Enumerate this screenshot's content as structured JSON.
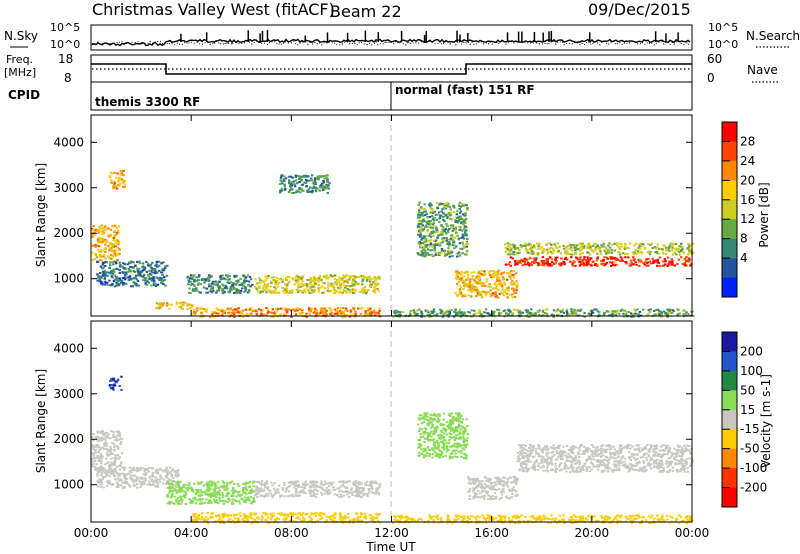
{
  "header": {
    "title": "Christmas Valley West (fitACF)",
    "beam": "Beam 22",
    "date": "09/Dec/2015"
  },
  "nsky_panel": {
    "left_label": "N.Sky",
    "left_ticks": [
      "10^5",
      "10^0"
    ],
    "right_label": "N.Search",
    "right_ticks": [
      "10^5",
      "10^0"
    ],
    "right_legend_style": "dotted"
  },
  "freq_panel": {
    "left_label_line1": "Freq.",
    "left_label_line2": "[MHz]",
    "left_ticks": [
      "18",
      "8"
    ],
    "right_label": "Nave",
    "right_ticks": [
      "60",
      "0"
    ],
    "right_legend_style": "dotted"
  },
  "cpid_panel": {
    "label": "CPID",
    "segments": [
      {
        "text": "themis 3300 RF",
        "start_hour": 0
      },
      {
        "text": "normal (fast) 151 RF",
        "start_hour": 12
      }
    ]
  },
  "power_colorbar": {
    "label": "Power [dB]",
    "ticks": [
      "28",
      "24",
      "20",
      "16",
      "12",
      "8",
      "4"
    ],
    "colors": [
      "#ff0000",
      "#ff4400",
      "#ff8800",
      "#ffcc00",
      "#cccc22",
      "#66aa44",
      "#338877",
      "#225599",
      "#0022ff"
    ]
  },
  "velocity_colorbar": {
    "label": "Velocity [m s-1]",
    "ticks": [
      "200",
      "100",
      "50",
      "15",
      "-15",
      "-50",
      "-100",
      "-200"
    ],
    "colors": [
      "#1a1aa0",
      "#2255cc",
      "#228844",
      "#88dd55",
      "#c8c8c0",
      "#ffcc00",
      "#ff8800",
      "#ff3300",
      "#ff0000"
    ]
  },
  "chart_data": [
    {
      "type": "heatmap",
      "variable": "Power",
      "ylabel": "Slant Range [km]",
      "xlabel": "",
      "x_range_hours": [
        0,
        24
      ],
      "ylim": [
        180,
        4600
      ],
      "y_ticks": [
        1000,
        2000,
        3000,
        4000
      ],
      "dashed_vertical_line_hour": 12,
      "echo_regions": [
        {
          "t0": 0.0,
          "t1": 1.1,
          "r0": 1400,
          "r1": 2200,
          "power_db": 20
        },
        {
          "t0": 0.7,
          "t1": 1.3,
          "r0": 3000,
          "r1": 3400,
          "power_db": 20
        },
        {
          "t0": 0.2,
          "t1": 3.0,
          "r0": 850,
          "r1": 1400,
          "power_db": 6
        },
        {
          "t0": 2.5,
          "t1": 4.0,
          "r0": 350,
          "r1": 500,
          "power_db": 18
        },
        {
          "t0": 3.8,
          "t1": 6.4,
          "r0": 700,
          "r1": 1100,
          "power_db": 8
        },
        {
          "t0": 6.5,
          "t1": 11.5,
          "r0": 700,
          "r1": 1100,
          "power_db": 16
        },
        {
          "t0": 4.0,
          "t1": 11.5,
          "r0": 180,
          "r1": 380,
          "power_db": 22
        },
        {
          "t0": 7.5,
          "t1": 9.5,
          "r0": 2900,
          "r1": 3300,
          "power_db": 8
        },
        {
          "t0": 13.0,
          "t1": 15.0,
          "r0": 1500,
          "r1": 2700,
          "power_db": 10
        },
        {
          "t0": 14.5,
          "t1": 17.0,
          "r0": 600,
          "r1": 1200,
          "power_db": 20
        },
        {
          "t0": 16.5,
          "t1": 24.0,
          "r0": 1300,
          "r1": 1500,
          "power_db": 28
        },
        {
          "t0": 16.5,
          "t1": 24.0,
          "r0": 1550,
          "r1": 1800,
          "power_db": 14
        },
        {
          "t0": 12.0,
          "t1": 24.0,
          "r0": 180,
          "r1": 350,
          "power_db": 10
        }
      ]
    },
    {
      "type": "heatmap",
      "variable": "Velocity",
      "ylabel": "Slant Range [km]",
      "xlabel": "Time UT",
      "x_range_hours": [
        0,
        24
      ],
      "x_ticks": [
        "00:00",
        "04:00",
        "08:00",
        "12:00",
        "16:00",
        "20:00",
        "00:00"
      ],
      "ylim": [
        180,
        4600
      ],
      "y_ticks": [
        1000,
        2000,
        3000,
        4000
      ],
      "dashed_vertical_line_hour": 12,
      "echo_regions": [
        {
          "t0": 0.0,
          "t1": 1.2,
          "r0": 1300,
          "r1": 2200,
          "velocity": 0
        },
        {
          "t0": 0.7,
          "t1": 1.2,
          "r0": 3100,
          "r1": 3400,
          "velocity": 200
        },
        {
          "t0": 0.2,
          "t1": 3.5,
          "r0": 950,
          "r1": 1400,
          "velocity": 0
        },
        {
          "t0": 3.0,
          "t1": 6.5,
          "r0": 600,
          "r1": 1100,
          "velocity": 30
        },
        {
          "t0": 6.5,
          "t1": 11.5,
          "r0": 750,
          "r1": 1100,
          "velocity": 0
        },
        {
          "t0": 4.0,
          "t1": 11.5,
          "r0": 180,
          "r1": 400,
          "velocity": -30
        },
        {
          "t0": 13.0,
          "t1": 15.0,
          "r0": 1600,
          "r1": 2600,
          "velocity": 30
        },
        {
          "t0": 15.0,
          "t1": 17.0,
          "r0": 700,
          "r1": 1200,
          "velocity": 0
        },
        {
          "t0": 17.0,
          "t1": 24.0,
          "r0": 1300,
          "r1": 1900,
          "velocity": 0
        },
        {
          "t0": 12.0,
          "t1": 24.0,
          "r0": 180,
          "r1": 350,
          "velocity": -30
        }
      ]
    }
  ]
}
